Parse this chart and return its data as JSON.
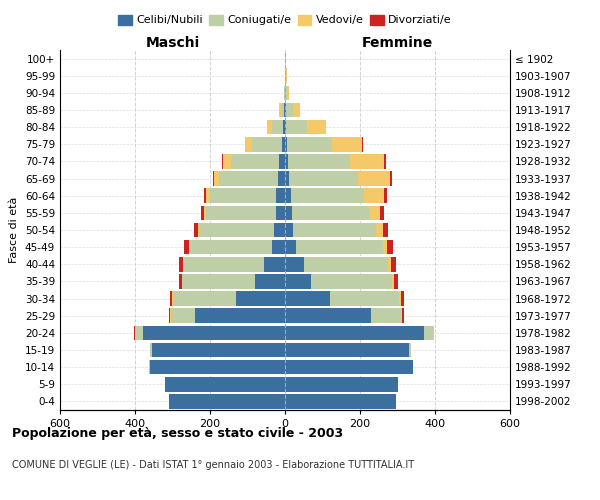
{
  "age_groups": [
    "0-4",
    "5-9",
    "10-14",
    "15-19",
    "20-24",
    "25-29",
    "30-34",
    "35-39",
    "40-44",
    "45-49",
    "50-54",
    "55-59",
    "60-64",
    "65-69",
    "70-74",
    "75-79",
    "80-84",
    "85-89",
    "90-94",
    "95-99",
    "100+"
  ],
  "birth_years": [
    "1998-2002",
    "1993-1997",
    "1988-1992",
    "1983-1987",
    "1978-1982",
    "1973-1977",
    "1968-1972",
    "1963-1967",
    "1958-1962",
    "1953-1957",
    "1948-1952",
    "1943-1947",
    "1938-1942",
    "1933-1937",
    "1928-1932",
    "1923-1927",
    "1918-1922",
    "1913-1917",
    "1908-1912",
    "1903-1907",
    "≤ 1902"
  ],
  "colors": {
    "celibi": "#3B6FA0",
    "coniugati": "#BECFA8",
    "vedovi": "#F5C96A",
    "divorziati": "#CC2222"
  },
  "maschi": {
    "celibi": [
      310,
      320,
      360,
      355,
      380,
      240,
      130,
      80,
      55,
      35,
      30,
      25,
      25,
      20,
      15,
      8,
      5,
      2,
      1,
      0,
      0
    ],
    "coniugati": [
      0,
      0,
      2,
      5,
      20,
      65,
      170,
      195,
      215,
      220,
      200,
      185,
      175,
      155,
      130,
      80,
      30,
      8,
      2,
      0,
      0
    ],
    "vedovi": [
      0,
      0,
      0,
      0,
      1,
      2,
      1,
      1,
      2,
      2,
      3,
      5,
      10,
      15,
      20,
      18,
      12,
      5,
      1,
      0,
      0
    ],
    "divorziati": [
      0,
      0,
      0,
      0,
      1,
      3,
      5,
      8,
      10,
      12,
      10,
      8,
      5,
      3,
      3,
      2,
      1,
      0,
      0,
      0,
      0
    ]
  },
  "femmine": {
    "celibi": [
      295,
      300,
      340,
      330,
      370,
      230,
      120,
      70,
      50,
      30,
      22,
      18,
      15,
      10,
      8,
      5,
      3,
      2,
      1,
      0,
      0
    ],
    "coniugati": [
      0,
      0,
      2,
      5,
      25,
      80,
      185,
      215,
      225,
      230,
      220,
      205,
      195,
      185,
      165,
      120,
      55,
      18,
      5,
      2,
      0
    ],
    "vedovi": [
      0,
      0,
      0,
      0,
      1,
      2,
      3,
      5,
      8,
      12,
      20,
      30,
      55,
      85,
      90,
      80,
      50,
      20,
      5,
      2,
      0
    ],
    "divorziati": [
      0,
      0,
      0,
      0,
      2,
      4,
      8,
      10,
      12,
      15,
      12,
      10,
      8,
      5,
      5,
      3,
      2,
      1,
      0,
      0,
      0
    ]
  },
  "title": "Popolazione per età, sesso e stato civile - 2003",
  "subtitle": "COMUNE DI VEGLIE (LE) - Dati ISTAT 1° gennaio 2003 - Elaborazione TUTTITALIA.IT",
  "ylabel_left": "Fasce di età",
  "header_left": "Maschi",
  "header_right": "Femmine",
  "xlim": 600,
  "xticks": [
    -600,
    -400,
    -200,
    0,
    200,
    400,
    600
  ],
  "xtick_labels": [
    "600",
    "400",
    "200",
    "0",
    "200",
    "400",
    "600"
  ],
  "legend_labels": [
    "Celibi/Nubili",
    "Coniugati/e",
    "Vedovi/e",
    "Divorziati/e"
  ]
}
